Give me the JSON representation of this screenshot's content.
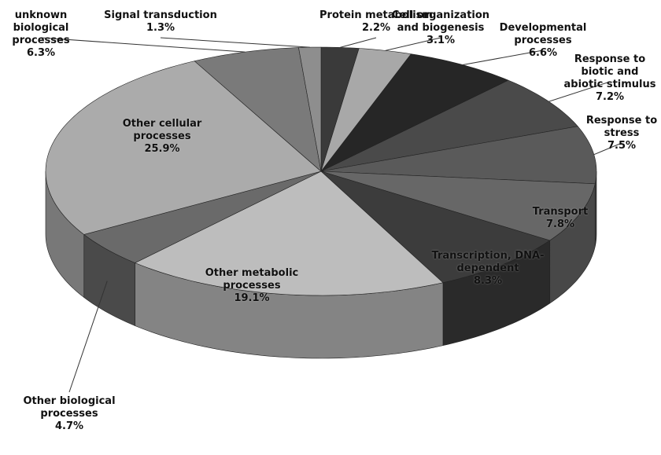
{
  "chart_data": {
    "type": "pie",
    "categories": [
      "Protein metabolism",
      "Cell organization and biogenesis",
      "Developmental processes",
      "Response to biotic and abiotic stimulus",
      "Response to stress",
      "Transport",
      "Transcription, DNA-dependent",
      "Other metabolic processes",
      "Other biological processes",
      "Other cellular processes",
      "unknown biological processes",
      "Signal transduction"
    ],
    "values": [
      2.2,
      3.1,
      6.6,
      7.2,
      7.5,
      7.8,
      8.3,
      19.1,
      4.7,
      25.9,
      6.3,
      1.3
    ],
    "value_labels": [
      "2.2%",
      "3.1%",
      "6.6%",
      "7.2%",
      "7.5%",
      "7.8%",
      "8.3%",
      "19.1%",
      "4.7%",
      "25.9%",
      "6.3%",
      "1.3%"
    ],
    "colors": [
      "#3a3a3a",
      "#a8a8a8",
      "#262626",
      "#4a4a4a",
      "#5a5a5a",
      "#676767",
      "#3c3c3c",
      "#bdbdbd",
      "#6a6a6a",
      "#ababab",
      "#7a7a7a",
      "#8e8e8e"
    ]
  }
}
